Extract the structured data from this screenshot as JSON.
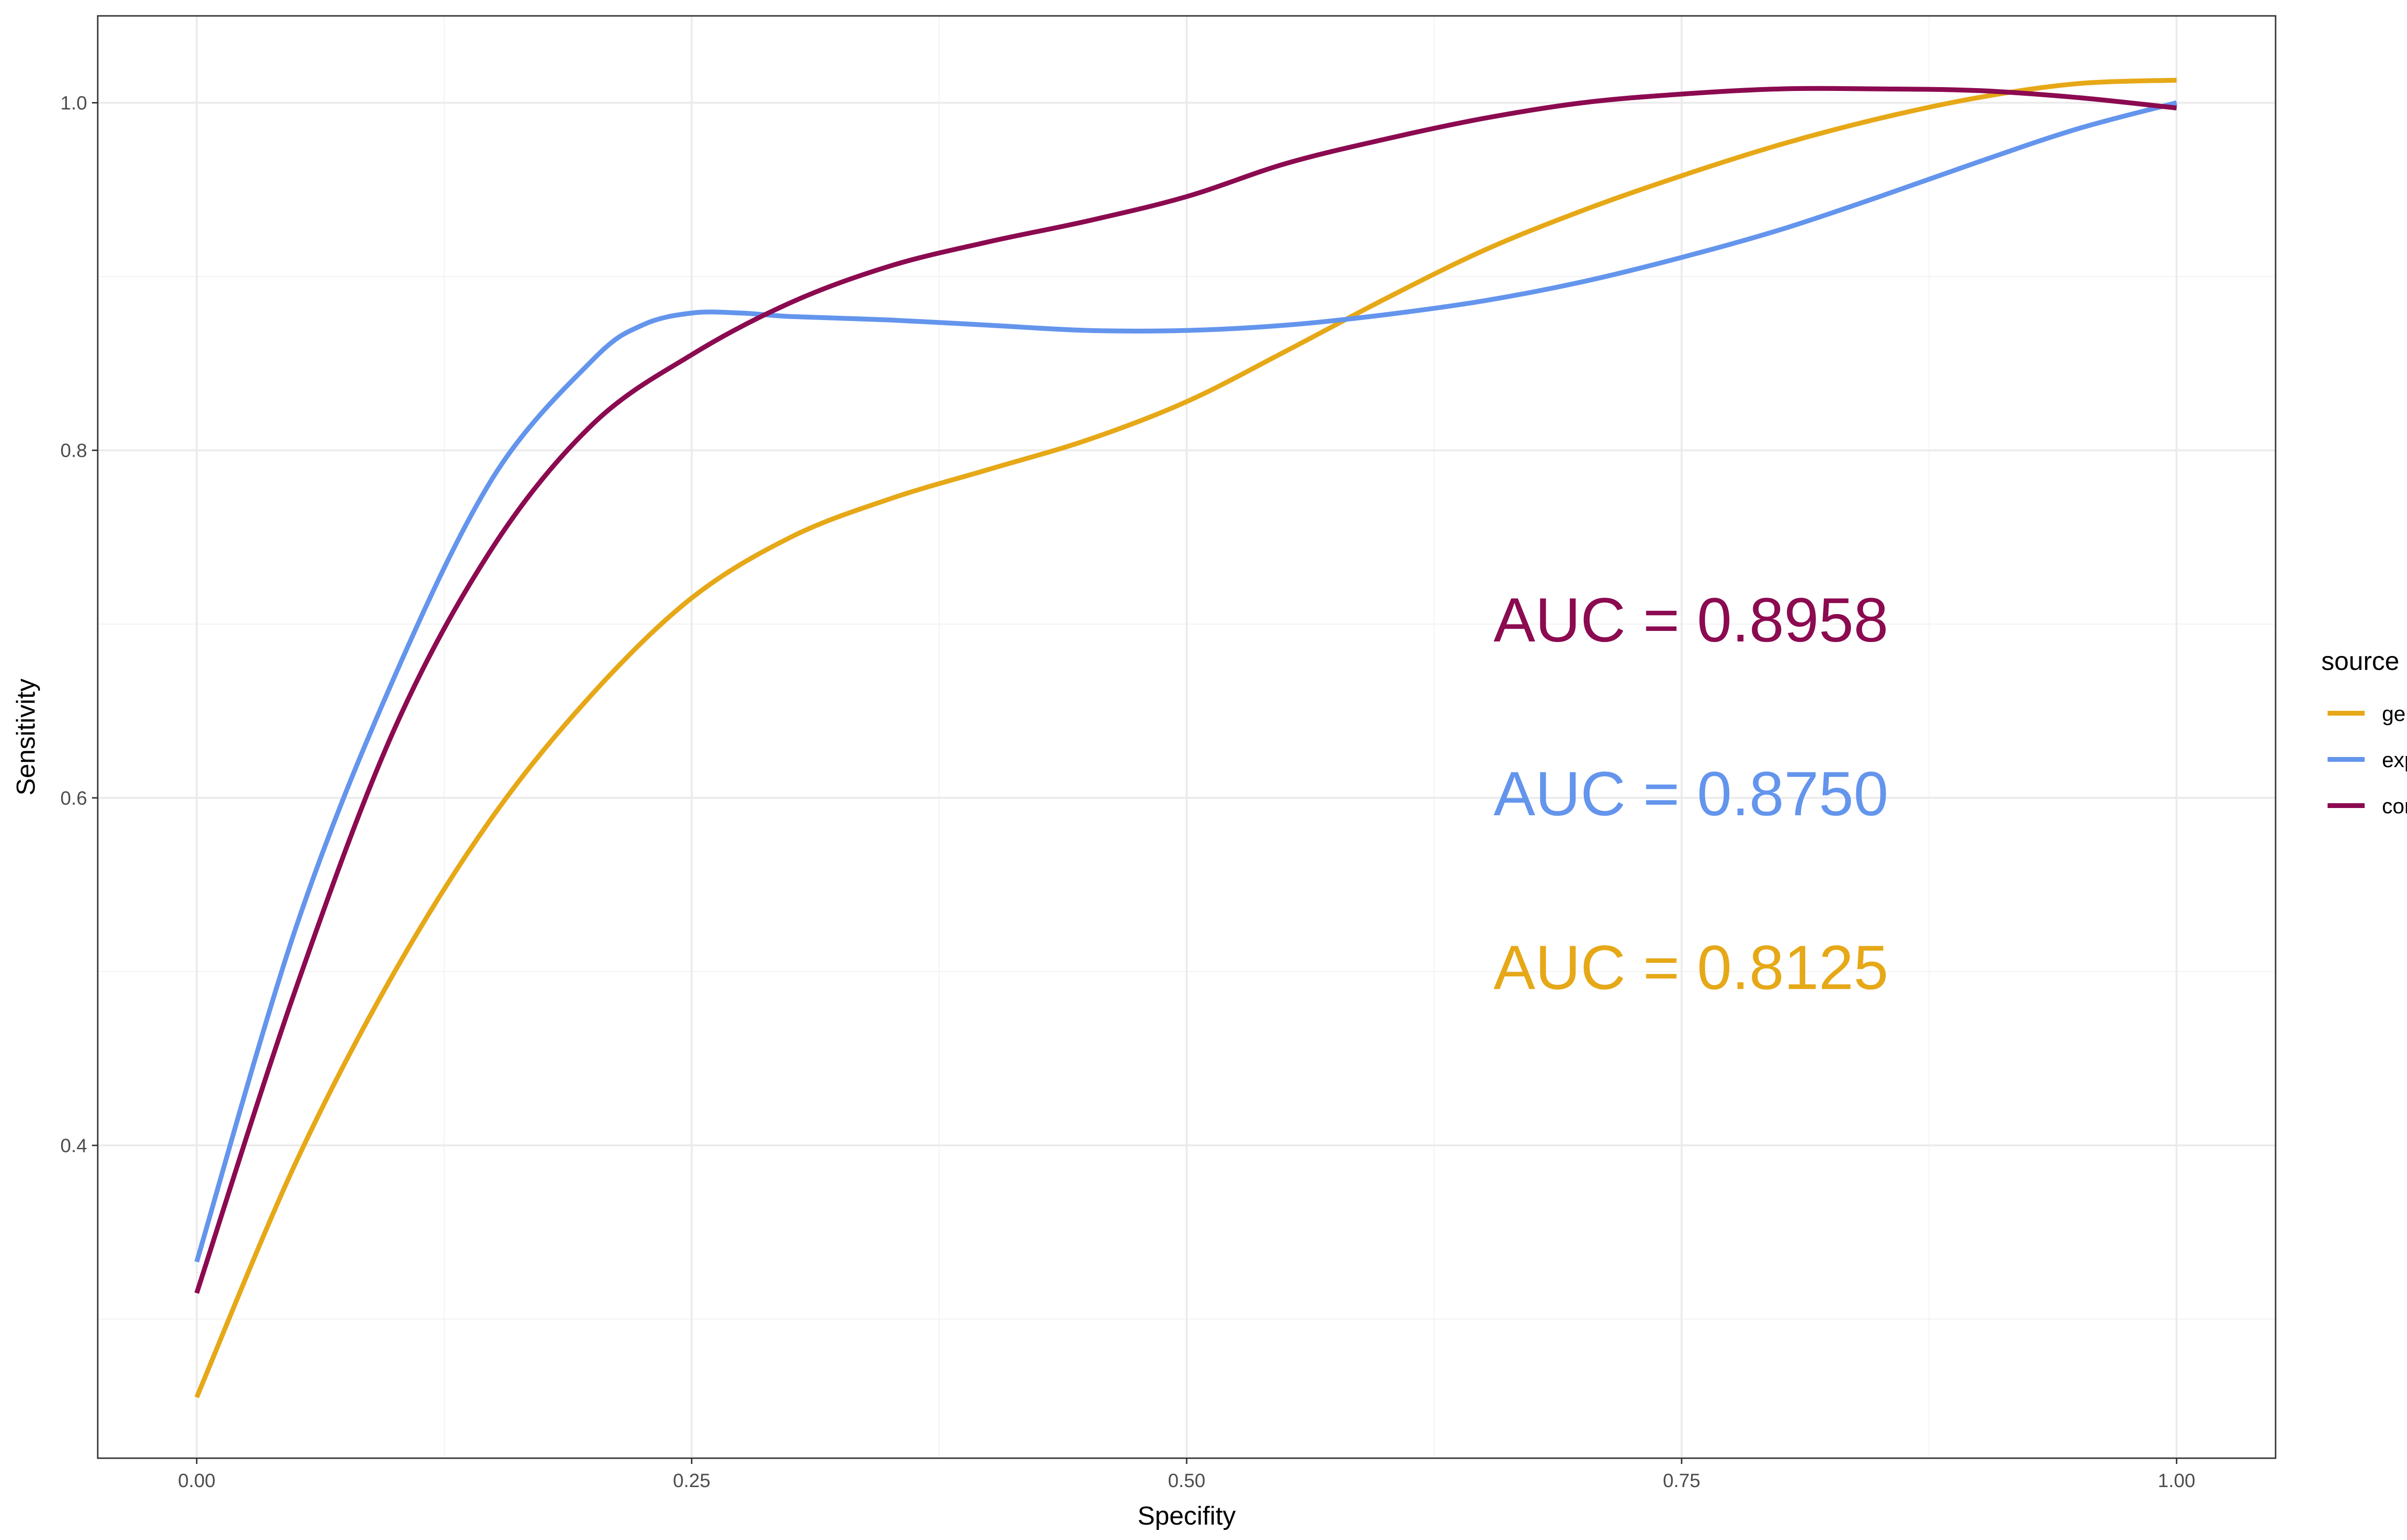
{
  "chart_data": {
    "type": "line",
    "xlabel": "Specifity",
    "ylabel": "Sensitivity",
    "xlim": [
      -0.05,
      1.05
    ],
    "ylim": [
      0.22,
      1.05
    ],
    "x_ticks": [
      0.0,
      0.25,
      0.5,
      0.75,
      1.0
    ],
    "x_tick_labels": [
      "0.00",
      "0.25",
      "0.50",
      "0.75",
      "1.00"
    ],
    "y_ticks": [
      0.4,
      0.6,
      0.8,
      1.0
    ],
    "y_tick_labels": [
      "0.4",
      "0.6",
      "0.8",
      "1.0"
    ],
    "grid": true,
    "legend": {
      "title": "source",
      "position": "right"
    },
    "series": [
      {
        "name": "gen_ra",
        "color": "#E6A817",
        "x": [
          0.0,
          0.05,
          0.1,
          0.15,
          0.2,
          0.25,
          0.3,
          0.35,
          0.4,
          0.45,
          0.5,
          0.55,
          0.6,
          0.65,
          0.7,
          0.75,
          0.8,
          0.85,
          0.9,
          0.95,
          1.0
        ],
        "y": [
          0.255,
          0.39,
          0.5,
          0.59,
          0.66,
          0.715,
          0.75,
          0.772,
          0.789,
          0.806,
          0.828,
          0.857,
          0.887,
          0.915,
          0.938,
          0.958,
          0.976,
          0.991,
          1.003,
          1.011,
          1.013
        ]
      },
      {
        "name": "expr_roc",
        "color": "#6495ED",
        "x": [
          0.0,
          0.05,
          0.1,
          0.15,
          0.2,
          0.225,
          0.25,
          0.275,
          0.3,
          0.35,
          0.4,
          0.45,
          0.5,
          0.55,
          0.6,
          0.65,
          0.7,
          0.75,
          0.8,
          0.85,
          0.9,
          0.95,
          1.0
        ],
        "y": [
          0.333,
          0.525,
          0.67,
          0.785,
          0.852,
          0.872,
          0.879,
          0.879,
          0.877,
          0.875,
          0.872,
          0.869,
          0.869,
          0.872,
          0.878,
          0.886,
          0.897,
          0.911,
          0.927,
          0.946,
          0.966,
          0.985,
          1.0
        ]
      },
      {
        "name": "comb_roc",
        "color": "#8B0A50",
        "x": [
          0.0,
          0.05,
          0.1,
          0.15,
          0.2,
          0.25,
          0.3,
          0.35,
          0.4,
          0.45,
          0.5,
          0.55,
          0.6,
          0.65,
          0.7,
          0.75,
          0.8,
          0.85,
          0.9,
          0.95,
          1.0
        ],
        "y": [
          0.315,
          0.49,
          0.64,
          0.745,
          0.815,
          0.855,
          0.885,
          0.906,
          0.92,
          0.932,
          0.946,
          0.965,
          0.979,
          0.991,
          1.0,
          1.005,
          1.008,
          1.008,
          1.007,
          1.003,
          0.997
        ]
      }
    ],
    "annotations": [
      {
        "text": "AUC = 0.8958",
        "x": 0.655,
        "y": 0.69,
        "color": "#8B0A50"
      },
      {
        "text": "AUC = 0.8750",
        "x": 0.655,
        "y": 0.59,
        "color": "#6495ED"
      },
      {
        "text": "AUC = 0.8125",
        "x": 0.655,
        "y": 0.49,
        "color": "#E6A817"
      }
    ]
  }
}
